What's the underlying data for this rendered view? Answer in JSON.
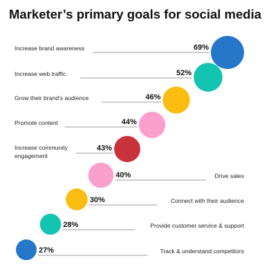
{
  "chart_data": {
    "type": "bubble",
    "title": "Marketer’s primary goals for social media",
    "unit": "%",
    "categories": [
      "Increase brand awareness",
      "Increase web traffic",
      "Grow their brand’s audience",
      "Promote content",
      "Increase community engagement",
      "Drive sales",
      "Connect with their audience",
      "Provide customer service & support",
      "Track & understand competitors"
    ],
    "category_lines": [
      [
        "Increase brand awareness"
      ],
      [
        "Increase web traffic"
      ],
      [
        "Grow their brand’s audience"
      ],
      [
        "Promote content"
      ],
      [
        "Increase community",
        "engagement"
      ],
      [
        "Drive sales"
      ],
      [
        "Connect with their audience"
      ],
      [
        "Provide customer service & support"
      ],
      [
        "Track & understand competitors"
      ]
    ],
    "values": [
      69,
      52,
      46,
      44,
      43,
      40,
      30,
      28,
      27
    ],
    "value_labels": [
      "69%",
      "52%",
      "46%",
      "44%",
      "43%",
      "40%",
      "30%",
      "28%",
      "27%"
    ],
    "colors": [
      "#2676c9",
      "#13c4b1",
      "#fbbd12",
      "#fb9fcc",
      "#c8323a",
      "#fb9fcc",
      "#fbbd12",
      "#13c4b1",
      "#2676c9"
    ],
    "label_side": [
      "left",
      "left",
      "left",
      "left",
      "left",
      "right",
      "right",
      "right",
      "right"
    ]
  }
}
